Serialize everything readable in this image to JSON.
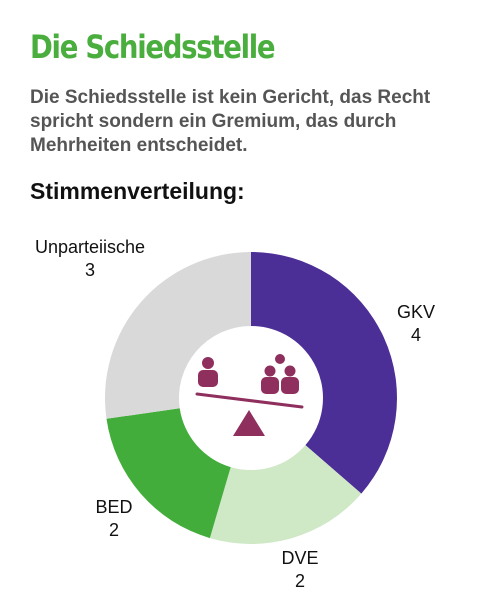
{
  "header": {
    "title": "Die Schiedsstelle",
    "subtitle": "Die Schiedsstelle ist kein Gericht, das Recht spricht sondern ein Gremium, das durch Mehrheiten entscheidet.",
    "section_heading": "Stimmenverteilung:"
  },
  "colors": {
    "title": "#4aae3e",
    "gkv": "#4b2e96",
    "dve": "#cfe8c6",
    "bed": "#43ad3b",
    "unparteiische": "#d9d9d9",
    "icon": "#8f2f5d"
  },
  "icon": "scales-of-balance-people-icon",
  "chart_data": {
    "type": "pie",
    "donut": true,
    "title": "Stimmenverteilung:",
    "categories": [
      "GKV",
      "DVE",
      "BED",
      "Unparteiische"
    ],
    "values": [
      4,
      2,
      2,
      3
    ],
    "colors": [
      "#4b2e96",
      "#cfe8c6",
      "#43ad3b",
      "#d9d9d9"
    ],
    "start": "top, clockwise"
  }
}
